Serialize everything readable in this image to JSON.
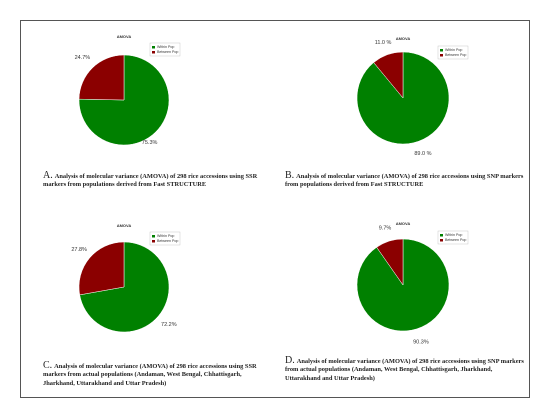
{
  "legend_colors": {
    "within": "#008000",
    "between": "#8b0000"
  },
  "chart_data": [
    {
      "type": "pie",
      "title": "AMOVA",
      "legend": [
        "Within Pop",
        "Between Pop"
      ],
      "legend_position": "top-right",
      "categories": [
        "Within Pop",
        "Between Pop"
      ],
      "values": [
        75.3,
        24.7
      ],
      "slice_labels": [
        "75.3%",
        "24.7%"
      ],
      "caption_letter": "A.",
      "caption": "Analysis of molecular variance (AMOVA) of 298 rice accessions using SSR markers from populations derived from Fast STRUCTURE"
    },
    {
      "type": "pie",
      "title": "AMOVA",
      "legend": [
        "Within Pop",
        "Between Pop"
      ],
      "legend_position": "top-right",
      "categories": [
        "Within Pop",
        "Between Pop"
      ],
      "values": [
        89.0,
        11.0
      ],
      "slice_labels": [
        "89.0 %",
        "11.0 %"
      ],
      "caption_letter": "B.",
      "caption": "Analysis of molecular variance (AMOVA) of 298 rice accessions using SNP markers from populations derived from Fast STRUCTURE"
    },
    {
      "type": "pie",
      "title": "AMOVA",
      "legend": [
        "Within Pop",
        "Between Pop"
      ],
      "legend_position": "top-right",
      "categories": [
        "Within Pop",
        "Between Pop"
      ],
      "values": [
        72.2,
        27.8
      ],
      "slice_labels": [
        "72.2%",
        "27.8%"
      ],
      "caption_letter": "C.",
      "caption": "Analysis of molecular variance (AMOVA) of 298 rice accessions using SSR markers from actual populations (Andaman, West Bengal, Chhattisgarh, Jharkhand, Uttarakhand and Uttar Pradesh)"
    },
    {
      "type": "pie",
      "title": "AMOVA",
      "legend": [
        "Within Pop",
        "Between Pop"
      ],
      "legend_position": "top-right",
      "categories": [
        "Within Pop",
        "Between Pop"
      ],
      "values": [
        90.3,
        9.7
      ],
      "slice_labels": [
        "90.3%",
        "9.7%"
      ],
      "caption_letter": "D.",
      "caption": "Analysis of molecular variance (AMOVA) of 298 rice accessions using SNP markers from actual populations (Andaman, West Bengal, Chhattisgarh, Jharkhand, Uttarakhand and Uttar Pradesh)"
    }
  ]
}
